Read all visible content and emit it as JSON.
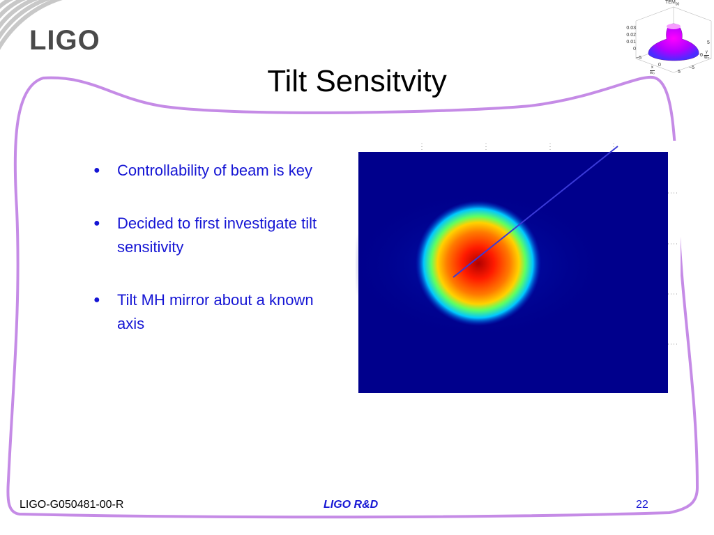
{
  "slide": {
    "title": "Tilt Sensitvity",
    "logo_text": "LIGO",
    "bullets": [
      "Controllability of beam is key",
      "Decided to first investigate tilt sensitivity",
      "Tilt MH mirror about a known axis"
    ],
    "footer": {
      "document_id": "LIGO-G050481-00-R",
      "center": "LIGO R&D",
      "page_number": "22"
    },
    "inset_plot": {
      "title": "TEM",
      "title_sub": "00",
      "z_ticks": [
        "0.03",
        "0.02",
        "0.01",
        "0"
      ],
      "x_ticks": [
        "−5",
        "0",
        "5"
      ],
      "y_ticks": [
        "−5",
        "0",
        "5"
      ],
      "x_label": "x",
      "x_label_sub": "w₀",
      "y_label": "y",
      "y_label_sub": "w₀"
    },
    "colors": {
      "frame": "#c58be6",
      "bullet_text": "#1515d4",
      "beam_background": "#00008c"
    }
  }
}
